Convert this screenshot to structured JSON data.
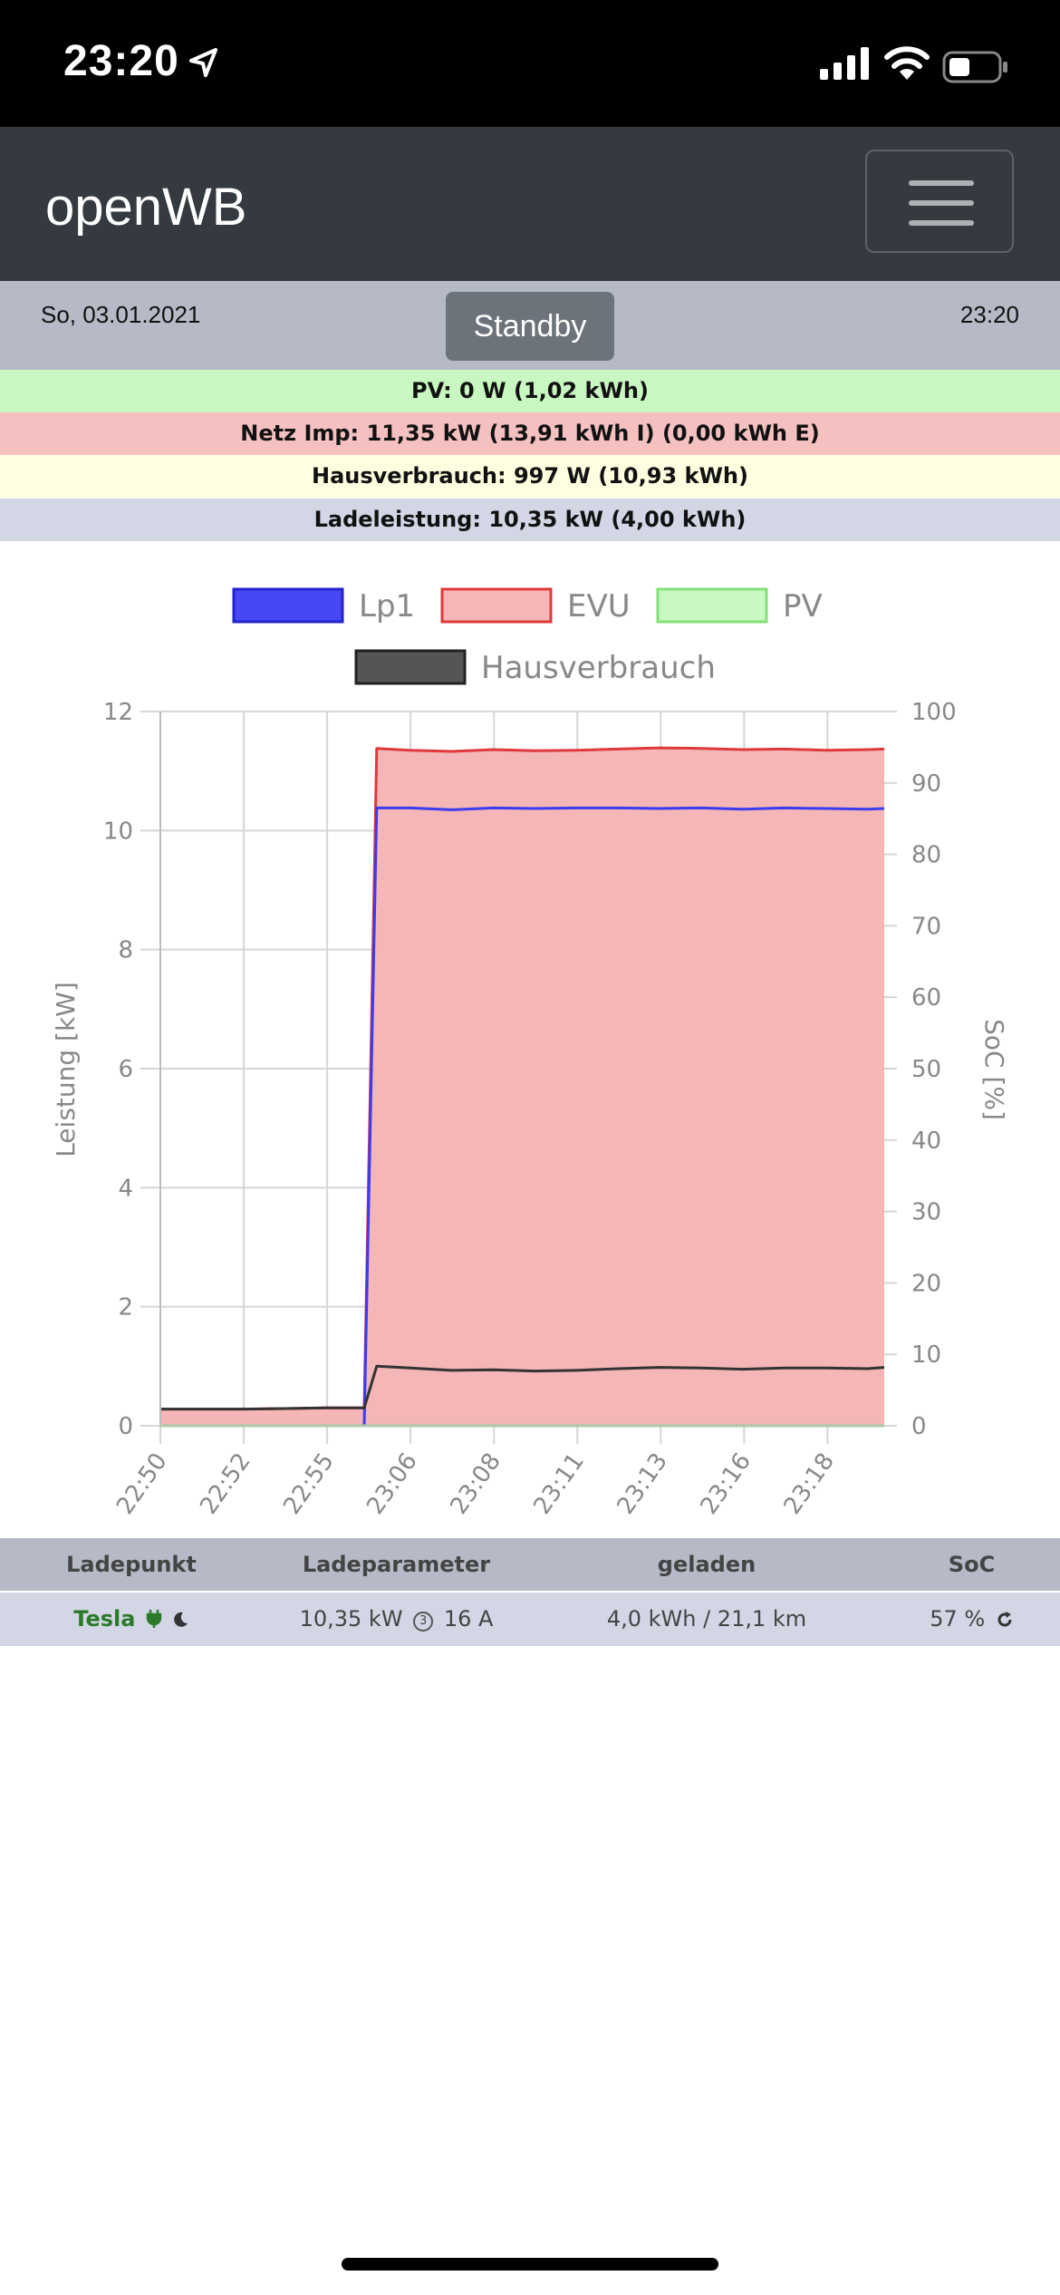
{
  "status_bar": {
    "time": "23:20"
  },
  "navbar": {
    "brand": "openWB"
  },
  "info": {
    "date": "So, 03.01.2021",
    "standby_label": "Standby",
    "time": "23:20"
  },
  "summary": {
    "pv": "PV: 0 W (1,02 kWh)",
    "netz": "Netz Imp: 11,35 kW (13,91 kWh I) (0,00 kWh E)",
    "haus": "Hausverbrauch: 997 W (10,93 kWh)",
    "lade": "Ladeleistung: 10,35 kW (4,00 kWh)"
  },
  "colors": {
    "lp1": "#3b3bf0",
    "evu": "#e0393b",
    "evu_fill": "#f4b6b6",
    "pv": "#84e07a",
    "pv_fill": "#c8f9c0",
    "haus": "#333333",
    "pv_row": "#c9f7c1",
    "netz_row": "#f4c1c0",
    "haus_row": "#fefee0",
    "lade_row": "#d3d7e5",
    "tesla": "#2b7a2b"
  },
  "chart_data": {
    "type": "line",
    "legend_position": "top",
    "legend": [
      "Lp1",
      "EVU",
      "PV",
      "Hausverbrauch"
    ],
    "ylabel": "Leistung [kW]",
    "y2label": "SoC [%]",
    "ylim": [
      0,
      12
    ],
    "y2lim": [
      0,
      100
    ],
    "yticks": [
      "0",
      "2",
      "4",
      "6",
      "8",
      "10",
      "12"
    ],
    "y2ticks": [
      "0",
      "10",
      "20",
      "30",
      "40",
      "50",
      "60",
      "70",
      "80",
      "90",
      "100"
    ],
    "xticks": [
      "22:50",
      "22:52",
      "22:55",
      "23:06",
      "23:08",
      "23:11",
      "23:13",
      "23:16",
      "23:18"
    ],
    "grid": true,
    "x_minutes": [
      0,
      2,
      3,
      4,
      4.9,
      5.2,
      6,
      7,
      8,
      9,
      10,
      11,
      12,
      13,
      14,
      15,
      16,
      17,
      17.4
    ],
    "series": [
      {
        "name": "Lp1",
        "values": [
          0,
          0,
          0,
          0,
          0,
          10.38,
          10.38,
          10.35,
          10.38,
          10.37,
          10.38,
          10.38,
          10.37,
          10.38,
          10.36,
          10.38,
          10.37,
          10.36,
          10.37
        ]
      },
      {
        "name": "EVU",
        "values": [
          0.28,
          0.28,
          0.29,
          0.3,
          0.3,
          11.38,
          11.35,
          11.33,
          11.36,
          11.34,
          11.35,
          11.37,
          11.39,
          11.38,
          11.36,
          11.37,
          11.35,
          11.36,
          11.37
        ]
      },
      {
        "name": "PV",
        "values": [
          0,
          0,
          0,
          0,
          0,
          0,
          0,
          0,
          0,
          0,
          0,
          0,
          0,
          0,
          0,
          0,
          0,
          0,
          0
        ]
      },
      {
        "name": "Hausverbrauch",
        "values": [
          0.28,
          0.28,
          0.29,
          0.3,
          0.3,
          1.0,
          0.97,
          0.93,
          0.94,
          0.92,
          0.93,
          0.96,
          0.98,
          0.97,
          0.95,
          0.97,
          0.97,
          0.96,
          0.98
        ]
      }
    ]
  },
  "table": {
    "headers": {
      "ladepunkt": "Ladepunkt",
      "ladeparameter": "Ladeparameter",
      "geladen": "geladen",
      "soc": "SoC"
    },
    "row": {
      "name": "Tesla",
      "ladeparameter": "10,35 kW",
      "phases": "3",
      "ampere": "16 A",
      "geladen": "4,0 kWh / 21,1 km",
      "soc": "57 %"
    }
  }
}
